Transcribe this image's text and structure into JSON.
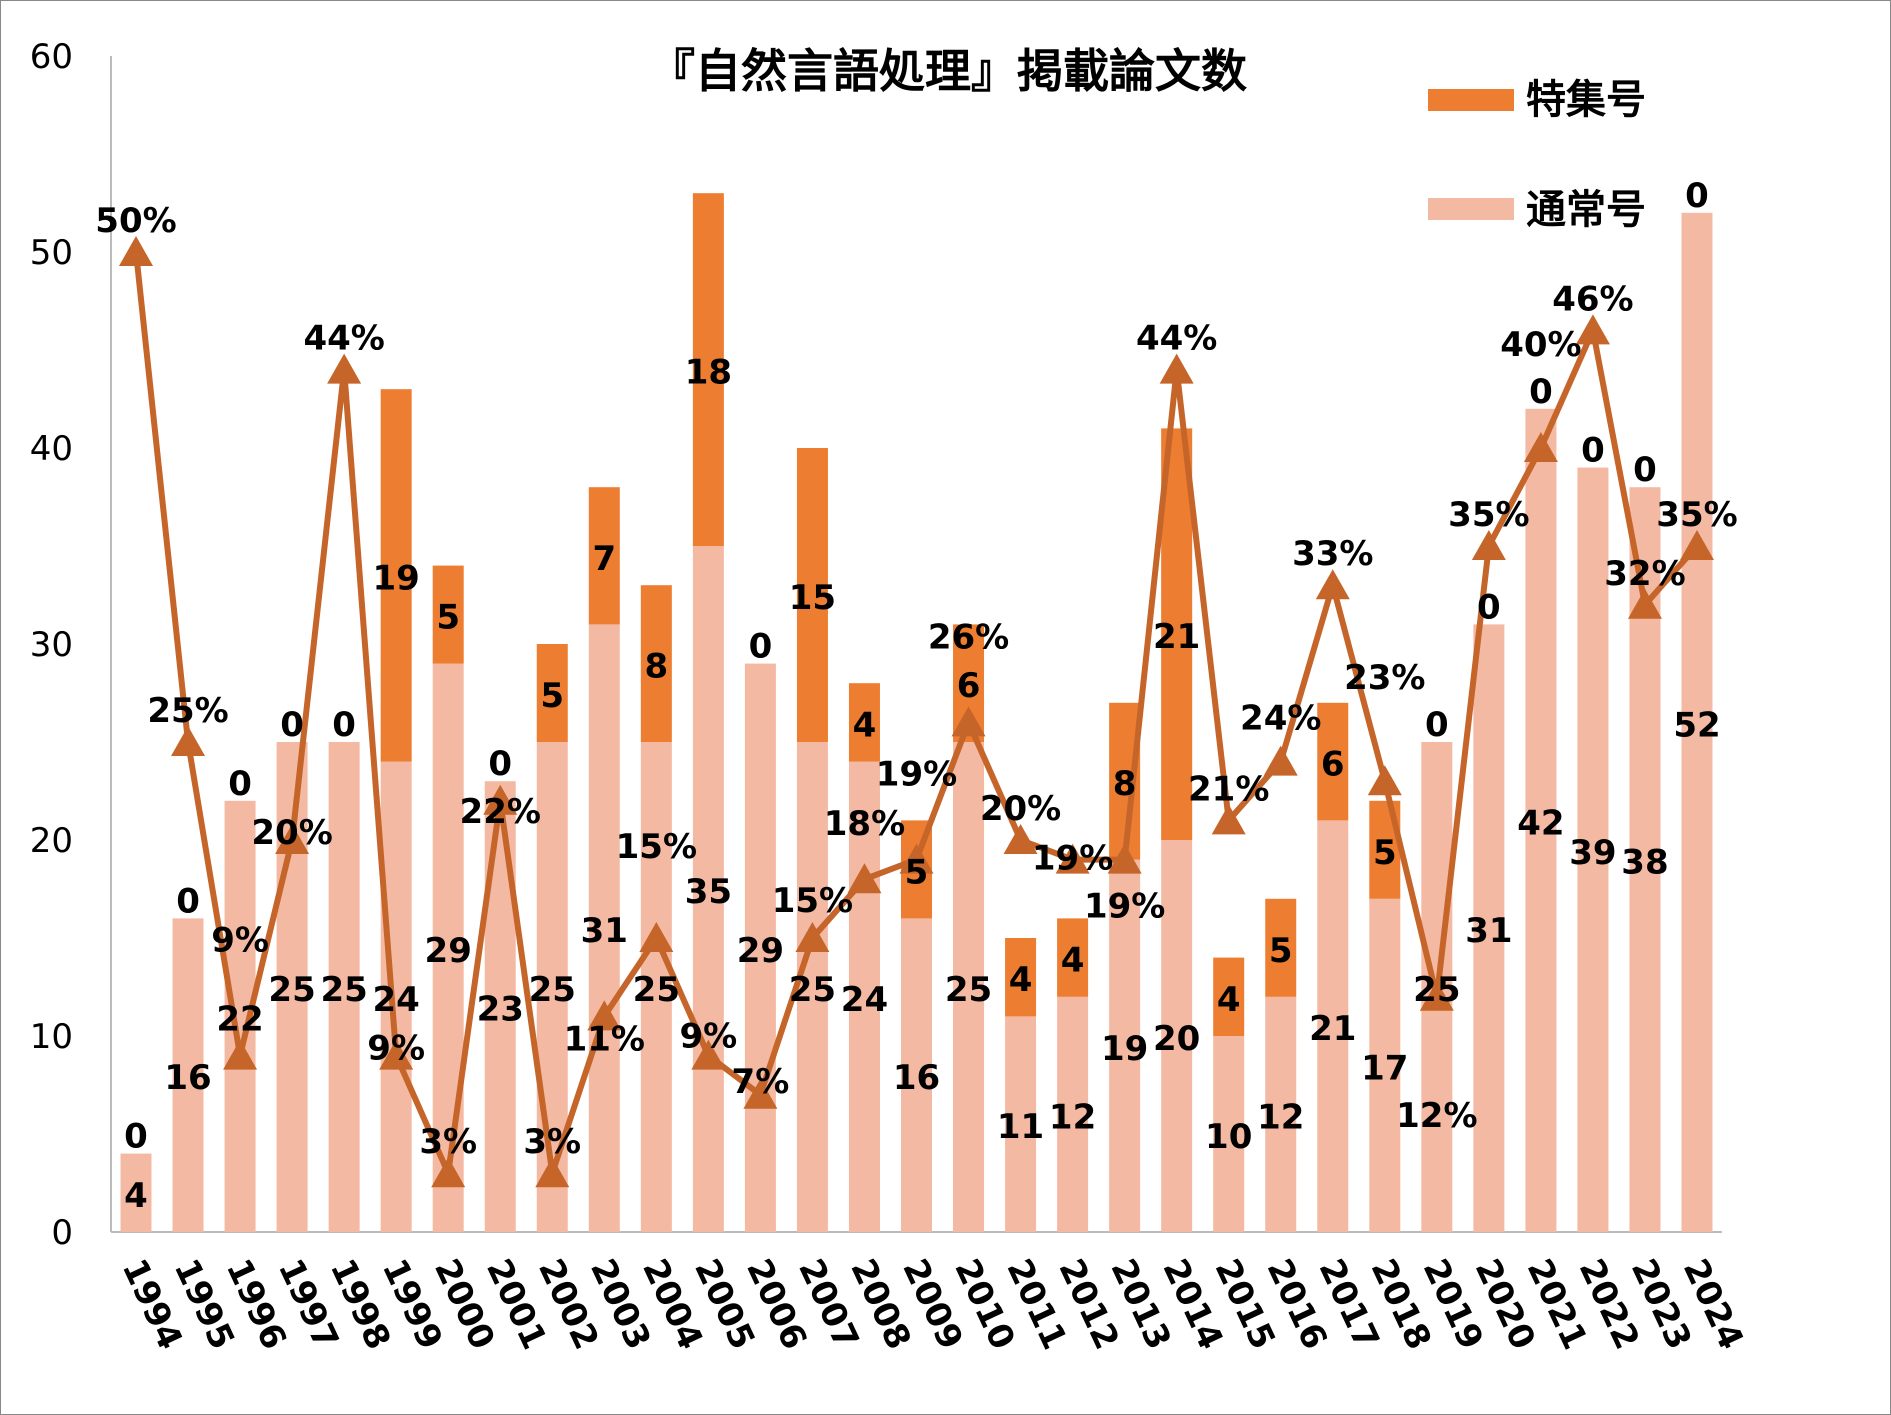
{
  "chart_data": {
    "type": "bar",
    "stacked": true,
    "title": "『自然言語処理』掲載論文数",
    "xlabel": "",
    "ylabel": "",
    "ylim": [
      0,
      60
    ],
    "yticks": [
      0,
      10,
      20,
      30,
      40,
      50,
      60
    ],
    "grid": false,
    "legend_position": "top-right",
    "categories": [
      "1994",
      "1995",
      "1996",
      "1997",
      "1998",
      "1999",
      "2000",
      "2001",
      "2002",
      "2003",
      "2004",
      "2005",
      "2006",
      "2007",
      "2008",
      "2009",
      "2010",
      "2011",
      "2012",
      "2013",
      "2014",
      "2015",
      "2016",
      "2017",
      "2018",
      "2019",
      "2020",
      "2021",
      "2022",
      "2023",
      "2024"
    ],
    "series": [
      {
        "name": "通常号",
        "color": "#F4B9A2",
        "values": [
          4,
          16,
          22,
          25,
          25,
          24,
          29,
          23,
          25,
          31,
          25,
          35,
          29,
          25,
          24,
          16,
          25,
          11,
          12,
          19,
          20,
          10,
          12,
          21,
          17,
          25,
          31,
          42,
          39,
          38,
          52
        ]
      },
      {
        "name": "特集号",
        "color": "#ED7D31",
        "values": [
          0,
          0,
          0,
          0,
          0,
          19,
          5,
          0,
          5,
          7,
          8,
          18,
          0,
          15,
          4,
          5,
          6,
          4,
          4,
          8,
          21,
          4,
          5,
          6,
          5,
          0,
          0,
          0,
          0,
          0,
          0
        ]
      }
    ],
    "line_series": {
      "color": "#C5652A",
      "marker": "triangle",
      "unit": "%",
      "values": [
        50,
        25,
        9,
        20,
        44,
        9,
        3,
        22,
        3,
        11,
        15,
        9,
        7,
        15,
        18,
        19,
        26,
        20,
        19,
        19,
        44,
        21,
        24,
        33,
        23,
        12,
        35,
        40,
        46,
        32,
        35
      ]
    }
  }
}
